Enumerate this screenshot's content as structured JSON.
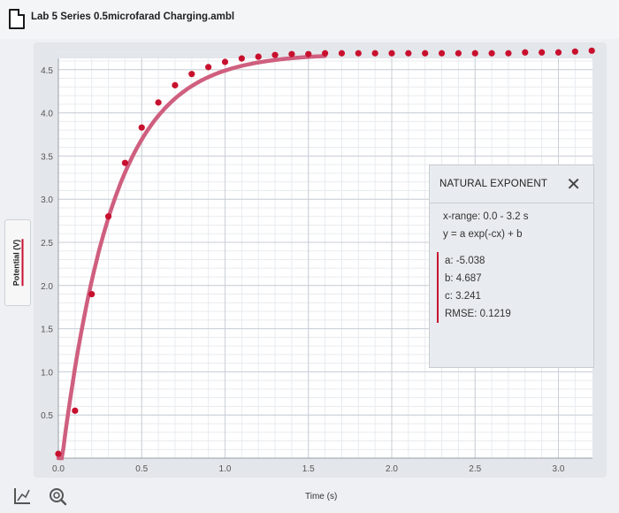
{
  "window": {
    "title": "Lab 5 Series 0.5microfarad Charging.ambl"
  },
  "chart": {
    "ylabel": "Potential (V)",
    "xlabel": "Time (s)",
    "y_ticks": [
      "0.5",
      "1.0",
      "1.5",
      "2.0",
      "2.5",
      "3.0",
      "3.5",
      "4.0",
      "4.5"
    ],
    "x_ticks": [
      "0.0",
      "0.5",
      "1.0",
      "1.5",
      "2.0",
      "2.5",
      "3.0"
    ],
    "colors": {
      "data": "#c8102e",
      "fit": "#cf5f7f",
      "grid": "#c9ced6"
    }
  },
  "chart_data": {
    "type": "scatter",
    "xlabel": "Time (s)",
    "ylabel": "Potential (V)",
    "xlim": [
      0.0,
      3.2
    ],
    "ylim": [
      0.0,
      4.75
    ],
    "grid": true,
    "series": [
      {
        "x": [
          0.0,
          0.1,
          0.2,
          0.3,
          0.4,
          0.5,
          0.6,
          0.7,
          0.8,
          0.9,
          1.0,
          1.1,
          1.2,
          1.3,
          1.4,
          1.5,
          1.6,
          1.7,
          1.8,
          1.9,
          2.0,
          2.1,
          2.2,
          2.3,
          2.4,
          2.5,
          2.6,
          2.7,
          2.8,
          2.9,
          3.0,
          3.1,
          3.2
        ],
        "y": [
          0.05,
          0.55,
          1.9,
          2.8,
          3.42,
          3.83,
          4.12,
          4.32,
          4.45,
          4.53,
          4.59,
          4.63,
          4.65,
          4.67,
          4.68,
          4.68,
          4.69,
          4.69,
          4.69,
          4.69,
          4.69,
          4.69,
          4.69,
          4.69,
          4.69,
          4.69,
          4.69,
          4.69,
          4.7,
          4.7,
          4.7,
          4.71,
          4.72
        ]
      },
      {
        "fit": {
          "a": -5.038,
          "b": 4.687,
          "c": 3.241
        }
      }
    ]
  },
  "fit_panel": {
    "title": "NATURAL EXPONENT",
    "close_icon": "close-icon",
    "x_range": "x-range: 0.0 - 3.2 s",
    "equation": "y = a exp(-cx) + b",
    "a": "a: -5.038",
    "b": "b: 4.687",
    "c": "c: 3.241",
    "rmse": "RMSE: 0.1219"
  },
  "toolbar": {
    "graph_icon": "graph-icon",
    "zoom_icon": "zoom-icon"
  }
}
